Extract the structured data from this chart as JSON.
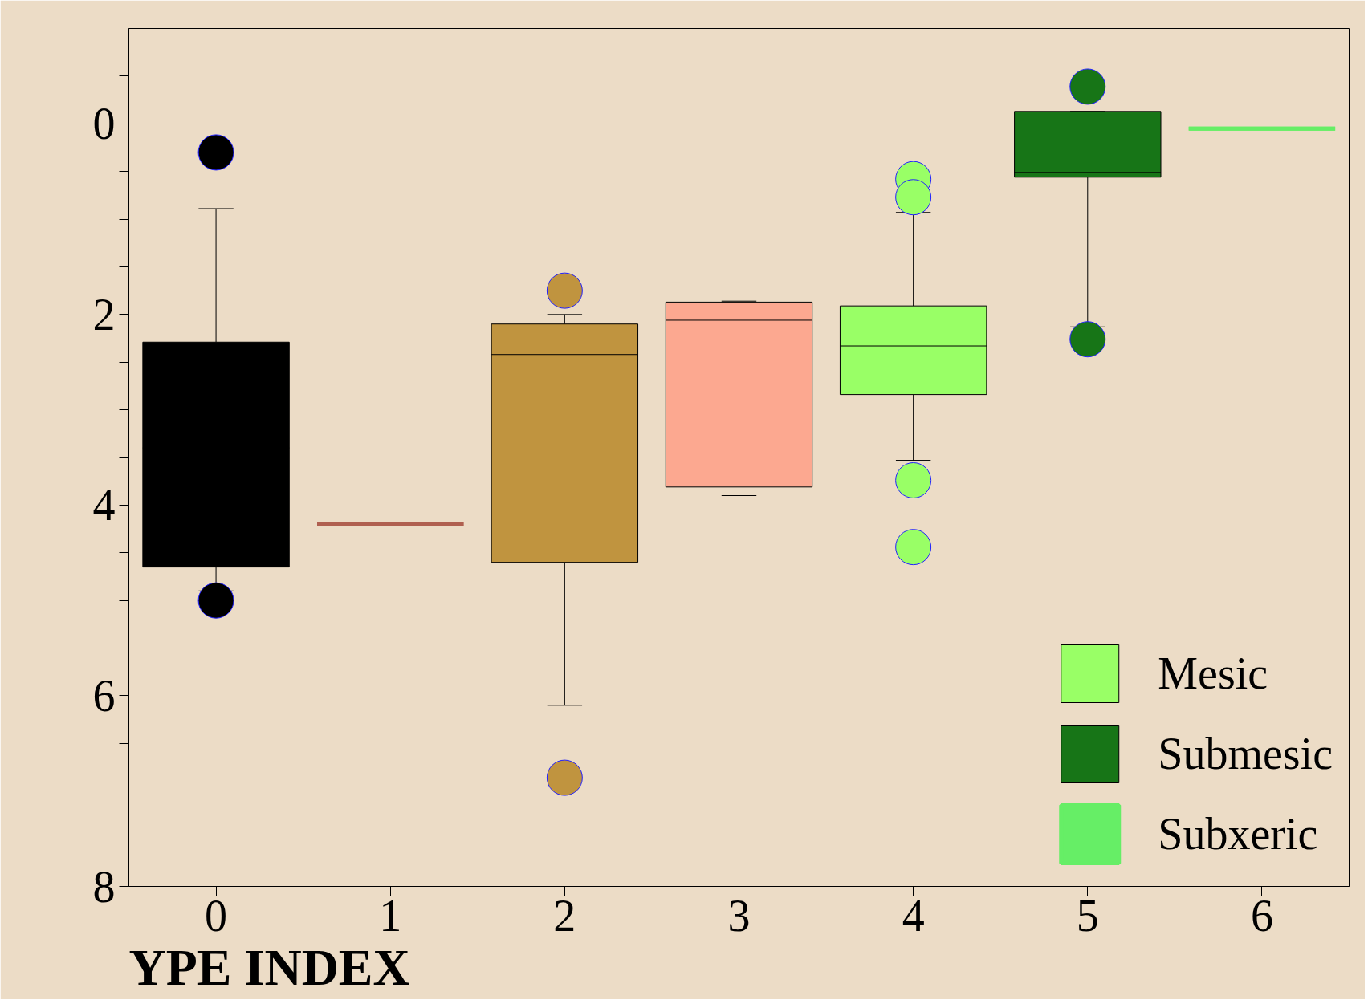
{
  "chart_data": {
    "type": "box",
    "xlabel": "YPE INDEX",
    "categories": [
      "0",
      "1",
      "2",
      "3",
      "4",
      "5",
      "6"
    ],
    "ylim": [
      8,
      -1
    ],
    "yticks": [
      {
        "value": -0.5,
        "label": null
      },
      0,
      {
        "value": 0.5,
        "label": null
      },
      {
        "value": 1,
        "label": null
      },
      {
        "value": 1.5,
        "label": null
      },
      2,
      {
        "value": 2.5,
        "label": null
      },
      {
        "value": 3,
        "label": null
      },
      {
        "value": 3.5,
        "label": null
      },
      4,
      {
        "value": 4.5,
        "label": null
      },
      {
        "value": 5,
        "label": null
      },
      {
        "value": 5.5,
        "label": null
      },
      6,
      {
        "value": 6.5,
        "label": null
      },
      {
        "value": 7,
        "label": null
      },
      {
        "value": 7.5,
        "label": null
      },
      8
    ],
    "grid": false,
    "legend": "bottom right",
    "series": [
      {
        "color": "#000000",
        "boxes": [
          {
            "low": 0.89,
            "q1": 2.29,
            "median": 3.4,
            "q3": 4.65,
            "high": 4.9,
            "outliers": [
              0.3,
              5.0
            ]
          },
          null,
          null,
          null,
          null,
          null,
          null
        ]
      },
      {
        "color": "#b06050",
        "boxes": [
          null,
          {
            "low": 4.2,
            "q1": 4.2,
            "median": 4.2,
            "q3": 4.2,
            "high": 4.2
          },
          null,
          null,
          null,
          null,
          null
        ]
      },
      {
        "color": "#c0943f",
        "boxes": [
          null,
          null,
          {
            "low": 2.0,
            "q1": 2.1,
            "median": 2.42,
            "q3": 4.6,
            "high": 6.1,
            "outliers": [
              1.75,
              6.86
            ]
          },
          null,
          null,
          null,
          null
        ]
      },
      {
        "color": "#fca890",
        "boxes": [
          null,
          null,
          null,
          {
            "low": 1.86,
            "q1": 1.87,
            "median": 2.06,
            "q3": 3.81,
            "high": 3.9
          },
          null,
          null,
          null
        ]
      },
      {
        "name": "Mesic",
        "color": "#99ff66",
        "boxes": [
          null,
          null,
          null,
          null,
          {
            "low": 0.93,
            "q1": 1.91,
            "median": 2.33,
            "q3": 2.84,
            "high": 3.53,
            "outliers": [
              0.58,
              0.77,
              3.74,
              4.44
            ]
          },
          null,
          null
        ]
      },
      {
        "name": "Submesic",
        "color": "#177517",
        "boxes": [
          null,
          null,
          null,
          null,
          null,
          {
            "low": -0.13,
            "q1": -0.13,
            "median": 0.51,
            "q3": 0.56,
            "high": 2.13,
            "outliers": [
              -0.39,
              2.26
            ]
          },
          null
        ]
      },
      {
        "name": "Subxeric",
        "color": "#66ee66",
        "boxes": [
          null,
          null,
          null,
          null,
          null,
          null,
          {
            "low": 0.05,
            "q1": 0.05,
            "median": 0.05,
            "q3": 0.05,
            "high": 0.05
          }
        ]
      }
    ]
  }
}
